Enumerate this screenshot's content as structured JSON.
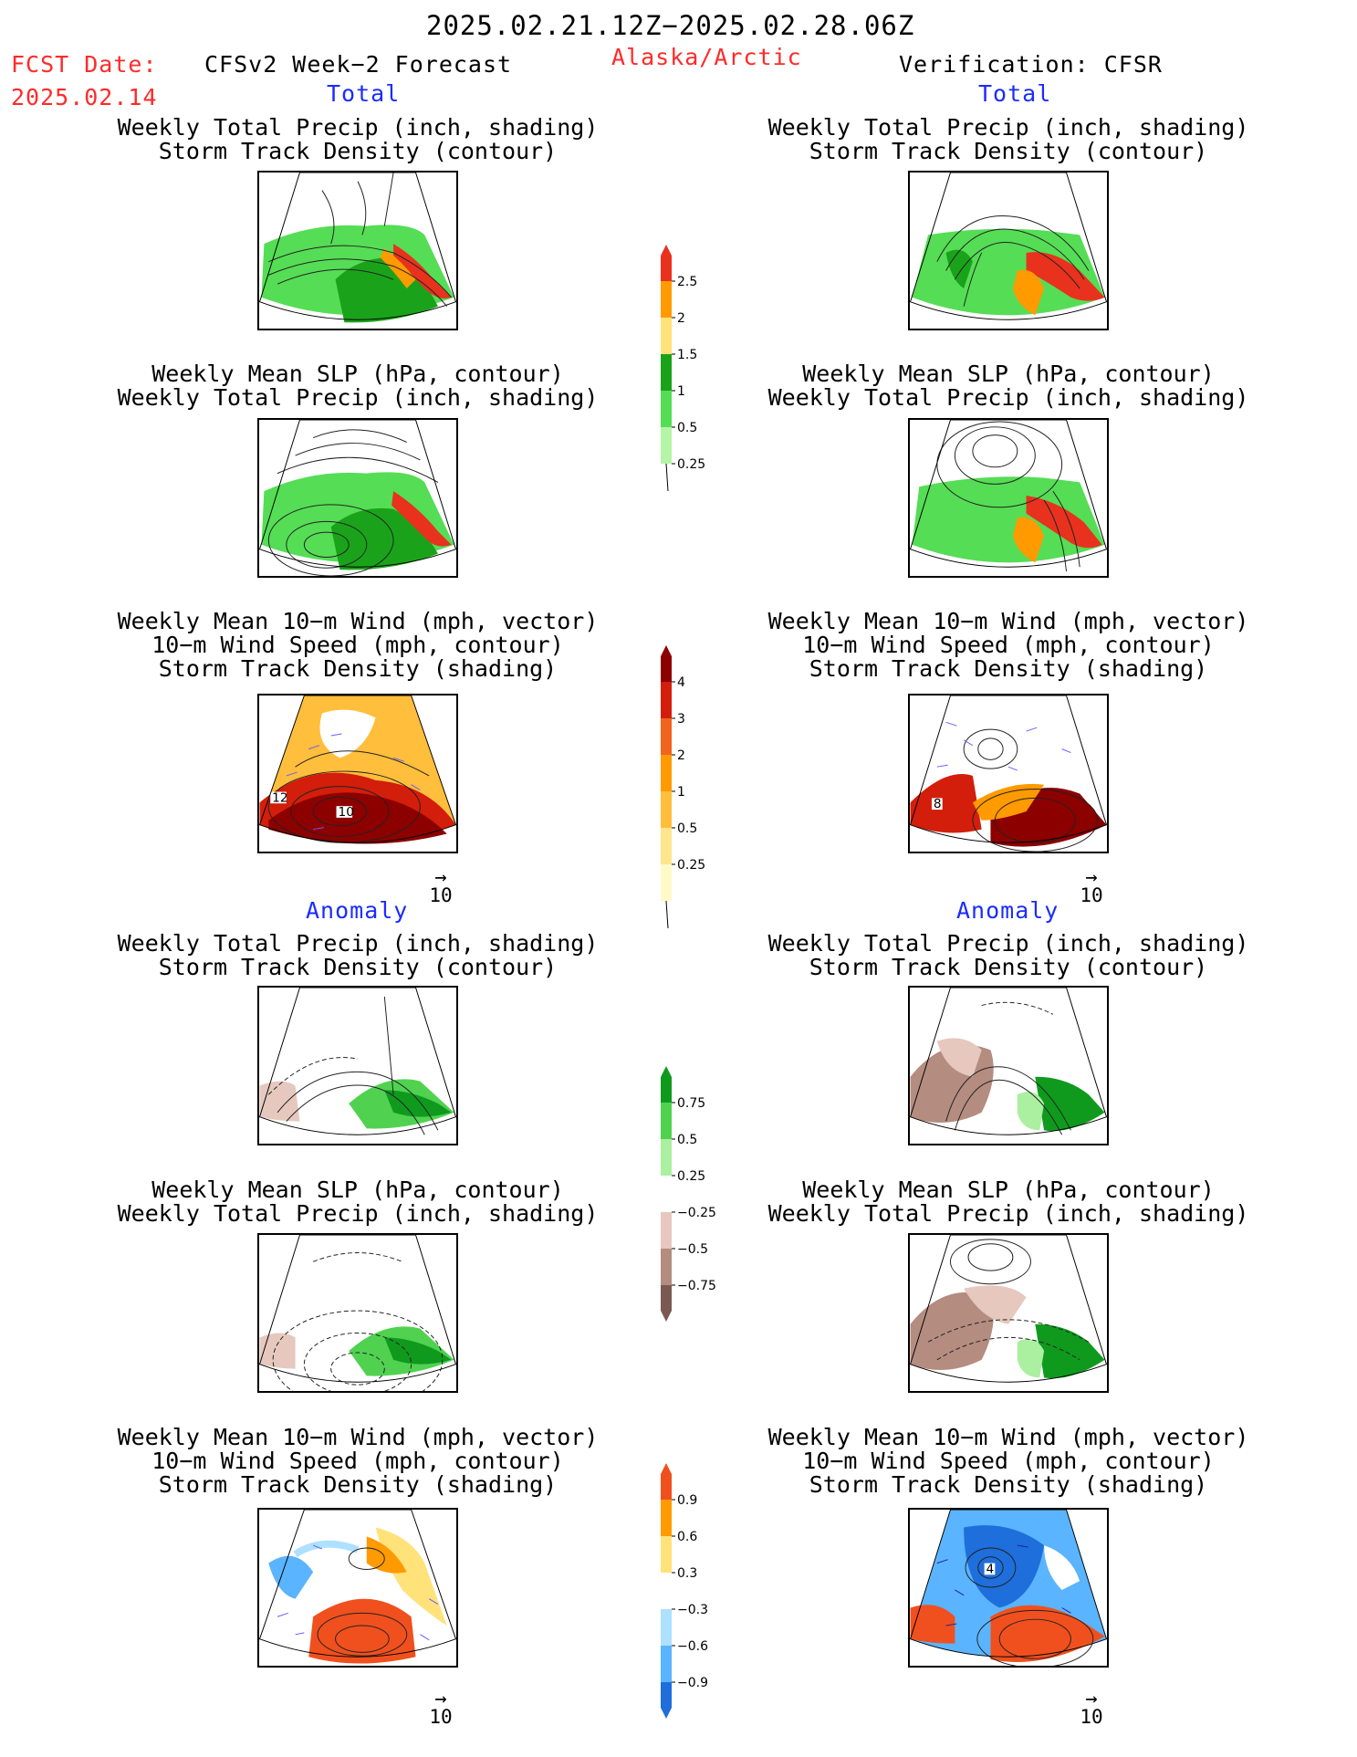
{
  "header": {
    "date_range": "2025.02.21.12Z−2025.02.28.06Z",
    "fcst_label": "FCST Date:",
    "fcst_date": "2025.02.14",
    "model": "CFSv2 Week−2 Forecast",
    "region": "Alaska/Arctic",
    "verification": "Verification: CFSR"
  },
  "sections": {
    "total": "Total",
    "anomaly": "Anomaly"
  },
  "panel_titles": {
    "precip_storm": [
      "Weekly Total Precip (inch, shading)",
      "Storm Track Density (contour)"
    ],
    "slp_precip": [
      "Weekly Mean SLP (hPa, contour)",
      "Weekly Total Precip (inch, shading)"
    ],
    "wind_storm": [
      "Weekly Mean 10−m Wind (mph, vector)",
      "10−m Wind Speed (mph, contour)",
      "Storm Track Density (shading)"
    ]
  },
  "map_labels": {
    "fcst_total_wind": [
      "12",
      "10"
    ],
    "verif_total_wind": [
      "8"
    ],
    "verif_anom_wind": [
      "4"
    ]
  },
  "vector_reference": "10",
  "colorbars": {
    "precip_total": {
      "labels": [
        "2.5",
        "2",
        "1.5",
        "1",
        "0.5",
        "0.25"
      ],
      "colors": [
        "#e8321e",
        "#ff9a00",
        "#ffe27a",
        "#1aa31a",
        "#55dd55",
        "#b4f5a8"
      ]
    },
    "storm_total": {
      "labels": [
        "4",
        "3",
        "2",
        "1",
        "0.5",
        "0.25"
      ],
      "colors": [
        "#8c0000",
        "#d21e0a",
        "#f0641e",
        "#ff9a00",
        "#ffbe3c",
        "#ffe68c",
        "#fffac8"
      ]
    },
    "precip_anom": {
      "labels": [
        "0.75",
        "0.5",
        "0.25",
        "−0.25",
        "−0.5",
        "−0.75"
      ],
      "colors": [
        "#0f9a1e",
        "#50d250",
        "#aaf0a0",
        "#ffffff",
        "#e6c8be",
        "#b48c80",
        "#7a5a50"
      ]
    },
    "storm_anom": {
      "labels": [
        "0.9",
        "0.6",
        "0.3",
        "−0.3",
        "−0.6",
        "−0.9"
      ],
      "colors": [
        "#f0501e",
        "#ff9a00",
        "#ffe27a",
        "#ffffff",
        "#aee0ff",
        "#5ab4ff",
        "#1e6edc"
      ]
    }
  }
}
